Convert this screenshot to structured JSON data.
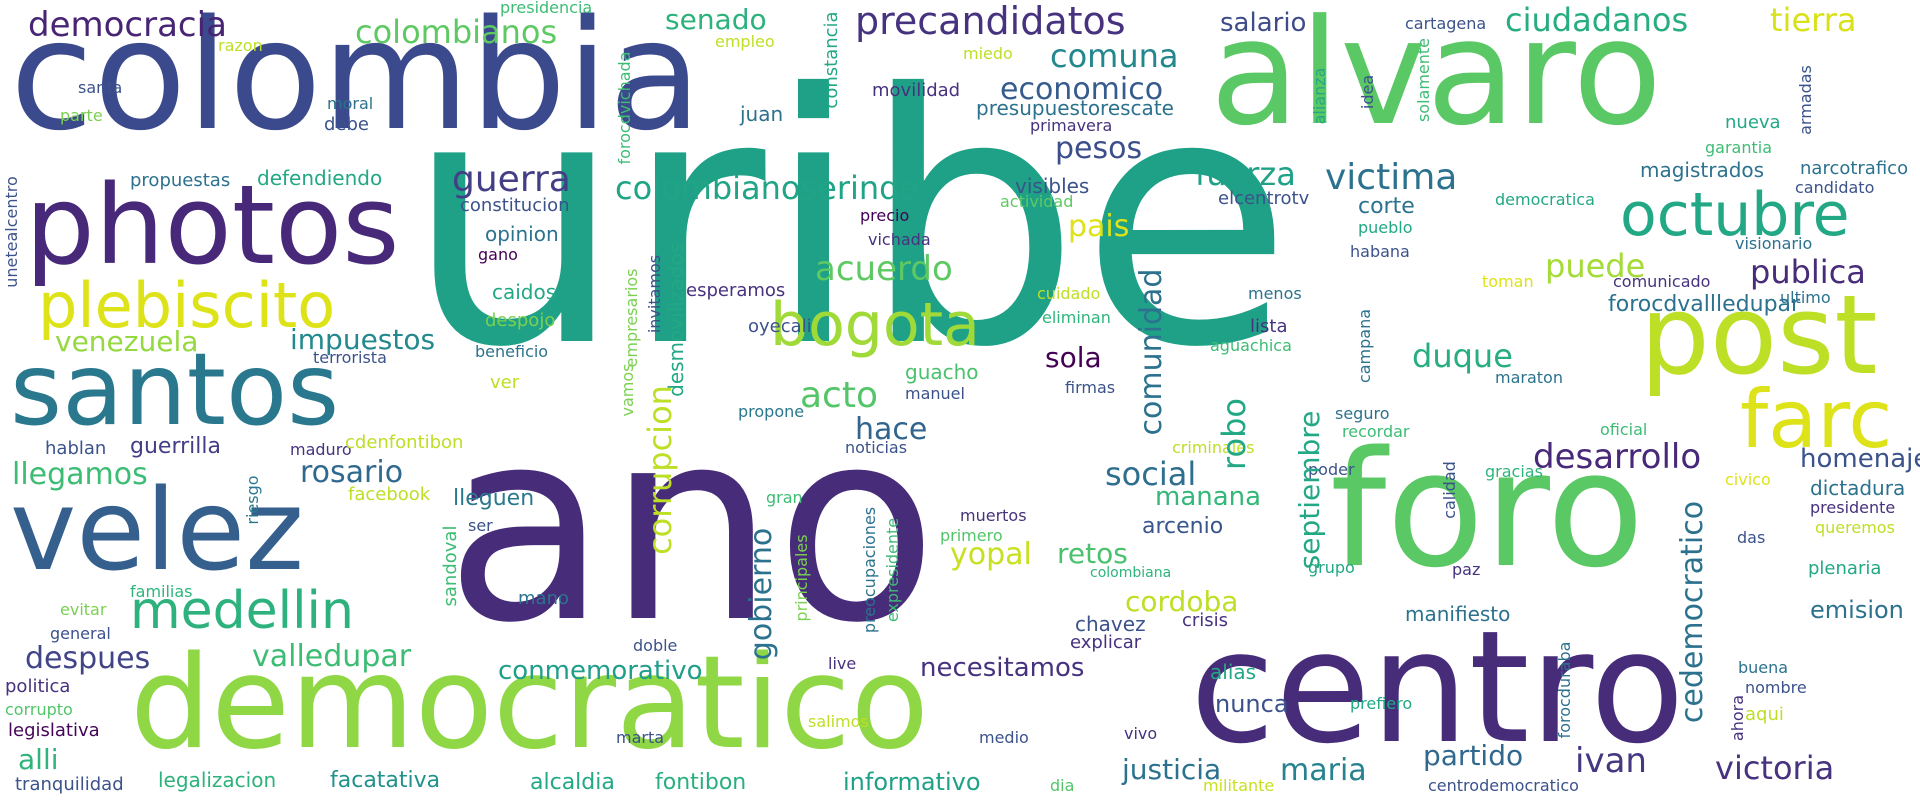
{
  "palette": {
    "dark_purple": "#472c7a",
    "indigo": "#3b4a8c",
    "blue": "#2e6e8e",
    "teal": "#25858e",
    "green_teal": "#1fa187",
    "green": "#4ac16d",
    "lime": "#a0da39",
    "yellow": "#dde318",
    "background": "#ffffff"
  },
  "words": [
    {
      "text": "uribe",
      "color": "#1fa187"
    },
    {
      "text": "ano",
      "color": "#472c7a"
    },
    {
      "text": "colombia",
      "color": "#3b4a8c"
    },
    {
      "text": "alvaro",
      "color": "#5ac864"
    },
    {
      "text": "foro",
      "color": "#5ac864"
    },
    {
      "text": "centro",
      "color": "#472c7a"
    },
    {
      "text": "democratico",
      "color": "#8fd744"
    },
    {
      "text": "photos",
      "color": "#482878"
    },
    {
      "text": "santos",
      "color": "#2a788e"
    },
    {
      "text": "velez",
      "color": "#355f8d"
    },
    {
      "text": "post",
      "color": "#bddf26"
    },
    {
      "text": "farc",
      "color": "#dde318"
    },
    {
      "text": "plebiscito",
      "color": "#dde318"
    },
    {
      "text": "octubre",
      "color": "#22a884"
    },
    {
      "text": "bogota",
      "color": "#a0da39"
    },
    {
      "text": "medellin",
      "color": "#2db27d"
    },
    {
      "text": "precandidatos",
      "color": "#46327e"
    },
    {
      "text": "colombianos",
      "color": "#5ec962"
    },
    {
      "text": "democracia",
      "color": "#482475"
    },
    {
      "text": "ciudadanos",
      "color": "#27ad81"
    },
    {
      "text": "tierra",
      "color": "#d8e219"
    },
    {
      "text": "senado",
      "color": "#2db27d"
    },
    {
      "text": "salario",
      "color": "#3e4c8a"
    },
    {
      "text": "comuna",
      "color": "#23888e"
    },
    {
      "text": "economico",
      "color": "#365c8d"
    },
    {
      "text": "colombianoserinde",
      "color": "#20a486"
    },
    {
      "text": "guerra",
      "color": "#433e85"
    },
    {
      "text": "fuerza",
      "color": "#1fa187"
    },
    {
      "text": "victima",
      "color": "#2c728e"
    },
    {
      "text": "pesos",
      "color": "#3c4f8a"
    },
    {
      "text": "pais",
      "color": "#dde318"
    },
    {
      "text": "acuerdo",
      "color": "#5ec962"
    },
    {
      "text": "acto",
      "color": "#54c568"
    },
    {
      "text": "hace",
      "color": "#32658e"
    },
    {
      "text": "sola",
      "color": "#440154"
    },
    {
      "text": "duque",
      "color": "#27ad81"
    },
    {
      "text": "puede",
      "color": "#a5db36"
    },
    {
      "text": "publica",
      "color": "#472c7a"
    },
    {
      "text": "forocdvallledupar",
      "color": "#2c728e"
    },
    {
      "text": "desarrollo",
      "color": "#482878"
    },
    {
      "text": "homenaje",
      "color": "#3b528b"
    },
    {
      "text": "social",
      "color": "#2e6e8e"
    },
    {
      "text": "manana",
      "color": "#35b779"
    },
    {
      "text": "rosario",
      "color": "#31688e"
    },
    {
      "text": "impuestos",
      "color": "#23898e"
    },
    {
      "text": "venezuela",
      "color": "#95d840"
    },
    {
      "text": "llegamos",
      "color": "#3dbc74"
    },
    {
      "text": "guerrilla",
      "color": "#433e85"
    },
    {
      "text": "valledupar",
      "color": "#3dbc74"
    },
    {
      "text": "despues",
      "color": "#414487"
    },
    {
      "text": "conmemorativo",
      "color": "#1f9e89"
    },
    {
      "text": "necesitamos",
      "color": "#46327e"
    },
    {
      "text": "cordoba",
      "color": "#bddf26"
    },
    {
      "text": "retos",
      "color": "#4ac16d"
    },
    {
      "text": "yopal",
      "color": "#c8e020"
    },
    {
      "text": "arcenio",
      "color": "#39568c"
    },
    {
      "text": "lleguen",
      "color": "#2a788e"
    },
    {
      "text": "justicia",
      "color": "#2c728e"
    },
    {
      "text": "maria",
      "color": "#26828e"
    },
    {
      "text": "partido",
      "color": "#31688e"
    },
    {
      "text": "ivan",
      "color": "#453781"
    },
    {
      "text": "victoria",
      "color": "#46327e"
    },
    {
      "text": "alli",
      "color": "#2fb47c"
    },
    {
      "text": "informativo",
      "color": "#1fa187"
    },
    {
      "text": "alcaldia",
      "color": "#22a884"
    },
    {
      "text": "fontibon",
      "color": "#29af7f"
    },
    {
      "text": "facatativa",
      "color": "#21918c"
    },
    {
      "text": "legalizacion",
      "color": "#2db27d"
    },
    {
      "text": "tranquilidad",
      "color": "#3b528b"
    },
    {
      "text": "legislativa",
      "color": "#450559"
    },
    {
      "text": "corrupto",
      "color": "#52c569"
    },
    {
      "text": "politica",
      "color": "#46327e"
    },
    {
      "text": "general",
      "color": "#3b528b"
    },
    {
      "text": "evitar",
      "color": "#7ad151"
    },
    {
      "text": "familias",
      "color": "#2fb47c"
    },
    {
      "text": "hablan",
      "color": "#3b528b"
    },
    {
      "text": "maduro",
      "color": "#46327e"
    },
    {
      "text": "cdenfontibon",
      "color": "#bddf26"
    },
    {
      "text": "terrorista",
      "color": "#3b528b"
    },
    {
      "text": "facebook",
      "color": "#bddf26"
    },
    {
      "text": "riesgo",
      "color": "#2a788e"
    },
    {
      "text": "ser",
      "color": "#3b528b"
    },
    {
      "text": "propuestas",
      "color": "#2c728e"
    },
    {
      "text": "defendiendo",
      "color": "#22a884"
    },
    {
      "text": "constitucion",
      "color": "#3b528b"
    },
    {
      "text": "opinion",
      "color": "#2c728e"
    },
    {
      "text": "gano",
      "color": "#440154"
    },
    {
      "text": "caidos",
      "color": "#22a884"
    },
    {
      "text": "despojo",
      "color": "#7ad151"
    },
    {
      "text": "beneficio",
      "color": "#2c728e"
    },
    {
      "text": "ver",
      "color": "#bddf26"
    },
    {
      "text": "esperamos",
      "color": "#46327e"
    },
    {
      "text": "oyecali",
      "color": "#3b528b"
    },
    {
      "text": "propone",
      "color": "#2a788e"
    },
    {
      "text": "noticias",
      "color": "#3b528b"
    },
    {
      "text": "precio",
      "color": "#440154"
    },
    {
      "text": "vichada",
      "color": "#46327e"
    },
    {
      "text": "visibles",
      "color": "#3b528b"
    },
    {
      "text": "actividad",
      "color": "#5ec962"
    },
    {
      "text": "cuidado",
      "color": "#bddf26"
    },
    {
      "text": "eliminan",
      "color": "#2fb47c"
    },
    {
      "text": "firmas",
      "color": "#3b528b"
    },
    {
      "text": "guacho",
      "color": "#4ac16d"
    },
    {
      "text": "manuel",
      "color": "#3b528b"
    },
    {
      "text": "muertos",
      "color": "#46327e"
    },
    {
      "text": "primero",
      "color": "#52c569"
    },
    {
      "text": "colombiana",
      "color": "#2fb47c"
    },
    {
      "text": "chavez",
      "color": "#3b528b"
    },
    {
      "text": "explicar",
      "color": "#46327e"
    },
    {
      "text": "crisis",
      "color": "#46327e"
    },
    {
      "text": "mano",
      "color": "#2c728e"
    },
    {
      "text": "doble",
      "color": "#3b528b"
    },
    {
      "text": "live",
      "color": "#46327e"
    },
    {
      "text": "salimos",
      "color": "#bddf26"
    },
    {
      "text": "marta",
      "color": "#3b528b"
    },
    {
      "text": "medio",
      "color": "#3b528b"
    },
    {
      "text": "dia",
      "color": "#52c569"
    },
    {
      "text": "vivo",
      "color": "#46327e"
    },
    {
      "text": "militante",
      "color": "#c8e020"
    },
    {
      "text": "centrodemocratico",
      "color": "#3b528b"
    },
    {
      "text": "nunca",
      "color": "#3b528b"
    },
    {
      "text": "alias",
      "color": "#22a884"
    },
    {
      "text": "prefiero",
      "color": "#22a884"
    },
    {
      "text": "aqui",
      "color": "#bddf26"
    },
    {
      "text": "nombre",
      "color": "#3b528b"
    },
    {
      "text": "buena",
      "color": "#2c728e"
    },
    {
      "text": "ahora",
      "color": "#46327e"
    },
    {
      "text": "forocduraba",
      "color": "#2c728e"
    },
    {
      "text": "emision",
      "color": "#2c728e"
    },
    {
      "text": "plenaria",
      "color": "#22a884"
    },
    {
      "text": "das",
      "color": "#3b528b"
    },
    {
      "text": "queremos",
      "color": "#bddf26"
    },
    {
      "text": "presidente",
      "color": "#46327e"
    },
    {
      "text": "dictadura",
      "color": "#2c728e"
    },
    {
      "text": "civico",
      "color": "#dde318"
    },
    {
      "text": "gracias",
      "color": "#2fb47c"
    },
    {
      "text": "calidad",
      "color": "#3b528b"
    },
    {
      "text": "paz",
      "color": "#46327e"
    },
    {
      "text": "grupo",
      "color": "#22a884"
    },
    {
      "text": "manifiesto",
      "color": "#2c728e"
    },
    {
      "text": "poder",
      "color": "#3b528b"
    },
    {
      "text": "oficial",
      "color": "#3dbc74"
    },
    {
      "text": "seguro",
      "color": "#2c728e"
    },
    {
      "text": "recordar",
      "color": "#3dbc74"
    },
    {
      "text": "maraton",
      "color": "#2c728e"
    },
    {
      "text": "criminales",
      "color": "#bddf26"
    },
    {
      "text": "aguachica",
      "color": "#3dbc74"
    },
    {
      "text": "lista",
      "color": "#46327e"
    },
    {
      "text": "menos",
      "color": "#2c728e"
    },
    {
      "text": "campana",
      "color": "#2c728e"
    },
    {
      "text": "toman",
      "color": "#dde318"
    },
    {
      "text": "comunicado",
      "color": "#46327e"
    },
    {
      "text": "ultimo",
      "color": "#2c728e"
    },
    {
      "text": "visionario",
      "color": "#2c728e"
    },
    {
      "text": "habana",
      "color": "#3b528b"
    },
    {
      "text": "pueblo",
      "color": "#22a884"
    },
    {
      "text": "elcentrotv",
      "color": "#3b528b"
    },
    {
      "text": "democratica",
      "color": "#22a884"
    },
    {
      "text": "corte",
      "color": "#2c728e"
    },
    {
      "text": "candidato",
      "color": "#3b528b"
    },
    {
      "text": "narcotrafico",
      "color": "#2c728e"
    },
    {
      "text": "magistrados",
      "color": "#2c728e"
    },
    {
      "text": "garantia",
      "color": "#3dbc74"
    },
    {
      "text": "nueva",
      "color": "#22a884"
    },
    {
      "text": "armadas",
      "color": "#3b528b"
    },
    {
      "text": "solamente",
      "color": "#3dbc74"
    },
    {
      "text": "idea",
      "color": "#3b528b"
    },
    {
      "text": "alianza",
      "color": "#22a884"
    },
    {
      "text": "cartagena",
      "color": "#3b528b"
    },
    {
      "text": "presupuestorescate",
      "color": "#2c728e"
    },
    {
      "text": "primavera",
      "color": "#46327e"
    },
    {
      "text": "movilidad",
      "color": "#46327e"
    },
    {
      "text": "miedo",
      "color": "#bddf26"
    },
    {
      "text": "empleo",
      "color": "#bddf26"
    },
    {
      "text": "presidencia",
      "color": "#3dbc74"
    },
    {
      "text": "juan",
      "color": "#2c728e"
    },
    {
      "text": "constancia",
      "color": "#22a884"
    },
    {
      "text": "forocdvichada",
      "color": "#3dbc74"
    },
    {
      "text": "razon",
      "color": "#bddf26"
    },
    {
      "text": "moral",
      "color": "#2c728e"
    },
    {
      "text": "debe",
      "color": "#3b528b"
    },
    {
      "text": "santa",
      "color": "#3b528b"
    },
    {
      "text": "parte",
      "color": "#7ad151"
    },
    {
      "text": "unetealcentro",
      "color": "#3b528b"
    },
    {
      "text": "comunidad",
      "color": "#2c728e"
    },
    {
      "text": "corrupcion",
      "color": "#bddf26"
    },
    {
      "text": "robo",
      "color": "#22a884"
    },
    {
      "text": "septiembre",
      "color": "#22a884"
    },
    {
      "text": "gobierno",
      "color": "#2c728e"
    },
    {
      "text": "cedemocratico",
      "color": "#2c728e"
    },
    {
      "text": "sandoval",
      "color": "#3dbc74"
    },
    {
      "text": "desmovilizados",
      "color": "#22a884"
    },
    {
      "text": "invitamos",
      "color": "#3b528b"
    },
    {
      "text": "empresarios",
      "color": "#7ad151"
    },
    {
      "text": "vamos",
      "color": "#7ad151"
    },
    {
      "text": "preocupaciones",
      "color": "#2c728e"
    },
    {
      "text": "principales",
      "color": "#7ad151"
    },
    {
      "text": "expresidente",
      "color": "#3dbc74"
    },
    {
      "text": "gran",
      "color": "#3dbc74"
    }
  ]
}
